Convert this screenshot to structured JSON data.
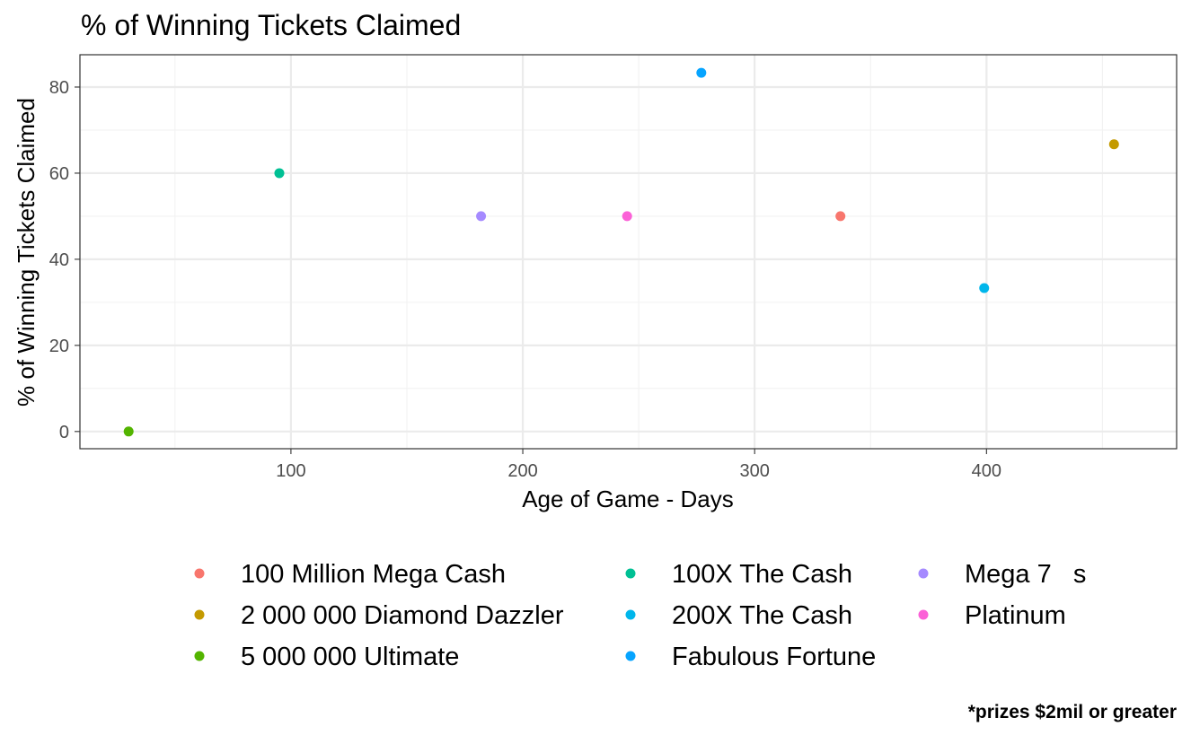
{
  "chart_data": {
    "type": "scatter",
    "title": "% of Winning Tickets Claimed",
    "xlabel": "Age of Game - Days",
    "ylabel": "% of Winning Tickets Claimed",
    "xlim": [
      9,
      482
    ],
    "ylim": [
      -4,
      87.5
    ],
    "x_major_ticks": [
      100,
      200,
      300,
      400
    ],
    "x_minor_ticks": [
      50,
      150,
      250,
      350,
      450
    ],
    "y_major_ticks": [
      0,
      20,
      40,
      60,
      80
    ],
    "y_minor_ticks": [
      10,
      30,
      50,
      70
    ],
    "x_tick_labels": [
      "100",
      "200",
      "300",
      "400"
    ],
    "y_tick_labels": [
      "0",
      "20",
      "40",
      "60",
      "80"
    ],
    "grid": true,
    "legend_position": "bottom",
    "series": [
      {
        "name": "100 Million Mega Cash",
        "color": "#F8766D",
        "x": 337,
        "y": 50
      },
      {
        "name": "2 000 000 Diamond Dazzler",
        "color": "#C49A00",
        "x": 455,
        "y": 66.7
      },
      {
        "name": "5 000 000 Ultimate",
        "color": "#53B400",
        "x": 30,
        "y": 0
      },
      {
        "name": "100X The Cash",
        "color": "#00C094",
        "x": 95,
        "y": 60
      },
      {
        "name": "200X The Cash",
        "color": "#00B6EB",
        "x": 399,
        "y": 33.3
      },
      {
        "name": "Fabulous Fortune",
        "color": "#06A4FF",
        "x": 277,
        "y": 83.3
      },
      {
        "name": "Mega 7   s",
        "color": "#A58AFF",
        "x": 182,
        "y": 50
      },
      {
        "name": "Platinum",
        "color": "#FB61D7",
        "x": 245,
        "y": 50
      }
    ]
  },
  "caption": "*prizes $2mil or greater"
}
